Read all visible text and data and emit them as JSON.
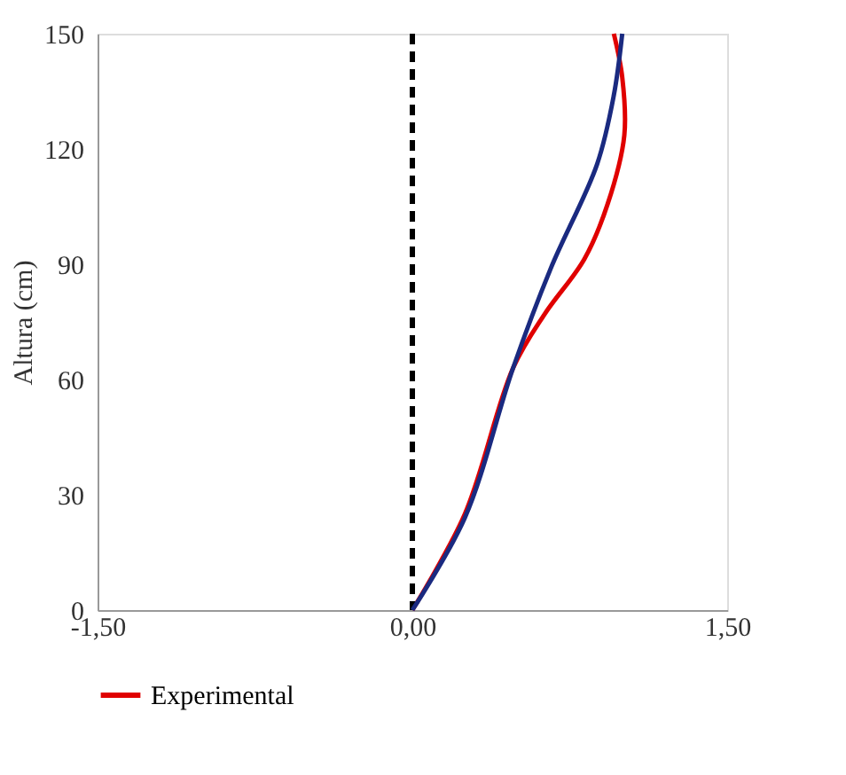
{
  "chart_data": {
    "type": "line",
    "ylabel": "Altura (cm)",
    "xlim": [
      -1.5,
      1.5
    ],
    "xticks": [
      {
        "value": -1.5,
        "label": "-1,50"
      },
      {
        "value": 0,
        "label": "0,00"
      },
      {
        "value": 1.5,
        "label": "1,50"
      }
    ],
    "ylim": [
      0,
      150
    ],
    "yticks": [
      0,
      30,
      60,
      90,
      120,
      150
    ],
    "series": [
      {
        "name": "Experimental",
        "color": "#e00000",
        "x": [
          0,
          0.25,
          0.48,
          0.63,
          0.82,
          0.93,
          1.01,
          1.0,
          0.96
        ],
        "values": [
          0,
          25,
          63,
          77,
          91.4,
          105.6,
          123.6,
          138.7,
          150
        ]
      },
      {
        "color": "#1a2a80",
        "x": [
          0,
          0.25,
          0.48,
          0.66,
          0.88,
          0.96,
          1.0
        ],
        "values": [
          0,
          24,
          63,
          89,
          116,
          134,
          150
        ]
      }
    ],
    "ref_lines": [
      {
        "axis": "x",
        "value": 0,
        "color": "#000000",
        "line_style": "dashed"
      }
    ],
    "grid": false,
    "legend": "bottom",
    "line_style": "solid"
  }
}
